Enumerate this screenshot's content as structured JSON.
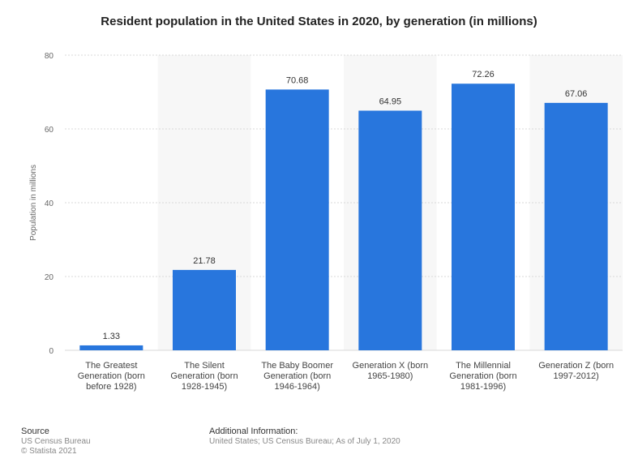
{
  "chart_data": {
    "type": "bar",
    "title": "Resident population in the United States in 2020, by generation (in millions)",
    "ylabel": "Population in millions",
    "xlabel": "",
    "ylim": [
      0,
      80
    ],
    "yticks": [
      0,
      20,
      40,
      60,
      80
    ],
    "grid": true,
    "categories": [
      [
        "The Greatest",
        "Generation (born",
        "before 1928)"
      ],
      [
        "The Silent",
        "Generation (born",
        "1928-1945)"
      ],
      [
        "The Baby Boomer",
        "Generation (born",
        "1946-1964)"
      ],
      [
        "Generation X (born",
        "1965-1980)"
      ],
      [
        "The Millennial",
        "Generation (born",
        "1981-1996)"
      ],
      [
        "Generation Z (born",
        "1997-2012)"
      ]
    ],
    "values": [
      1.33,
      21.78,
      70.68,
      64.95,
      72.26,
      67.06
    ],
    "value_labels": [
      "1.33",
      "21.78",
      "70.68",
      "64.95",
      "72.26",
      "67.06"
    ],
    "bar_color": "#2876dd"
  },
  "footer": {
    "source_heading": "Source",
    "source_lines": [
      "US Census Bureau",
      "© Statista 2021"
    ],
    "info_heading": "Additional Information:",
    "info_text": "United States; US Census Bureau; As of July 1, 2020"
  }
}
